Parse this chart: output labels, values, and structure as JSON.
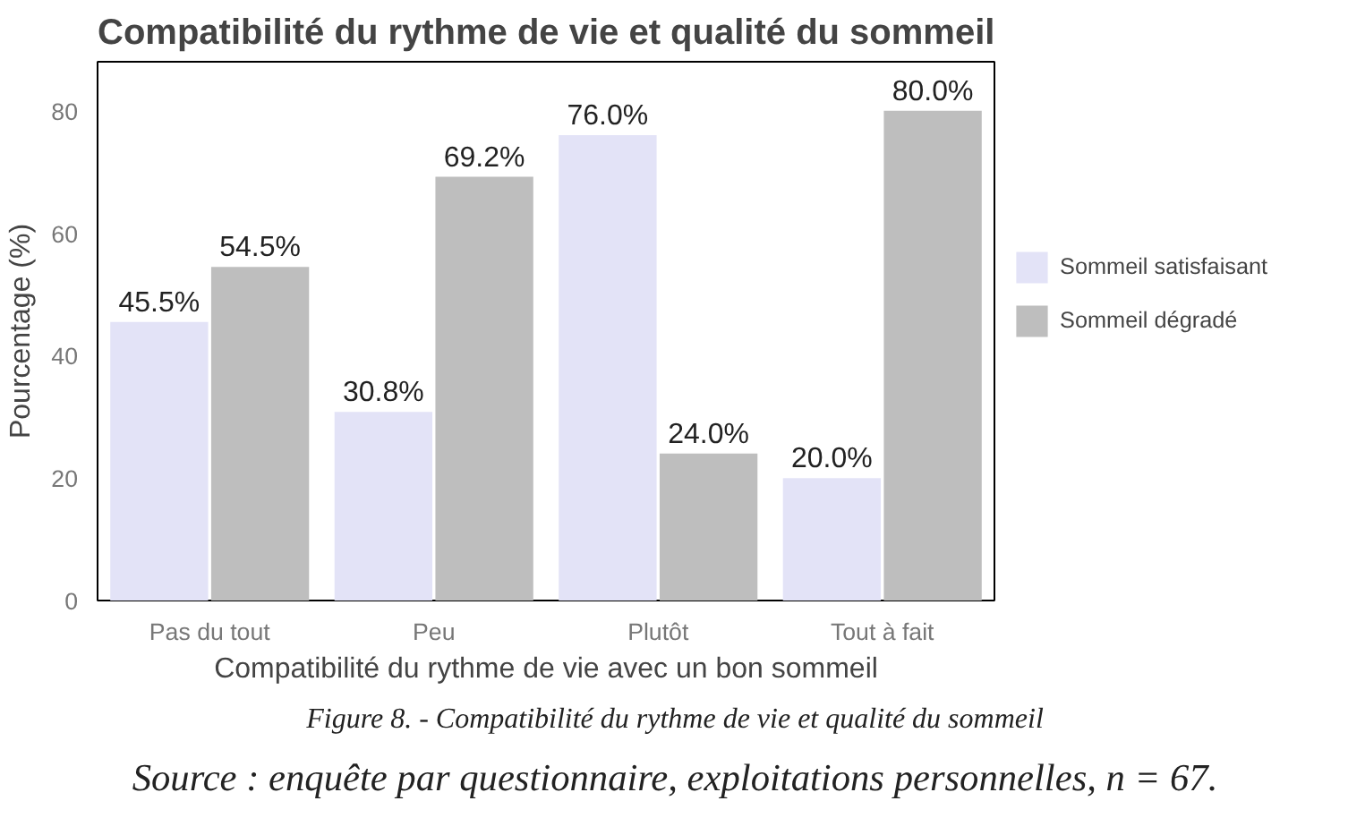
{
  "chart_data": {
    "type": "bar",
    "title": "Compatibilité du rythme de vie et qualité du sommeil",
    "xlabel": "Compatibilité du rythme de vie avec un bon sommeil",
    "ylabel": "Pourcentage (%)",
    "categories": [
      "Pas du tout",
      "Peu",
      "Plutôt",
      "Tout à fait"
    ],
    "series": [
      {
        "name": "Sommeil satisfaisant",
        "color": "#e3e3f7",
        "values": [
          45.5,
          30.8,
          76.0,
          20.0
        ],
        "value_labels": [
          "45.5%",
          "30.8%",
          "76.0%",
          "20.0%"
        ]
      },
      {
        "name": "Sommeil dégradé",
        "color": "#bebebe",
        "values": [
          54.5,
          69.2,
          24.0,
          80.0
        ],
        "value_labels": [
          "54.5%",
          "69.2%",
          "24.0%",
          "80.0%"
        ]
      }
    ],
    "ylim": [
      0,
      88
    ],
    "yticks": [
      0,
      20,
      40,
      60,
      80
    ],
    "grid": false,
    "legend": "right",
    "annotations": [
      "Figure 8. - Compatibilité du rythme de vie et qualité du sommeil",
      "Source : enquête par questionnaire, exploitations personnelles, n = 67."
    ]
  }
}
